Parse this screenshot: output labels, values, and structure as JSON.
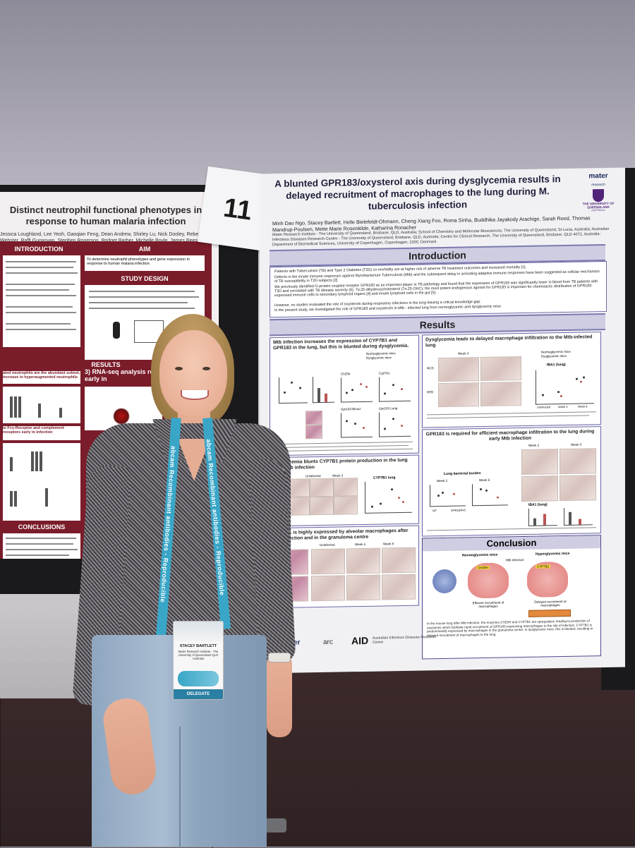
{
  "poster_number": "11",
  "left_poster": {
    "title": "Distinct neutrophil functional phenotypes in response to human malaria infection",
    "authors": "Jessica Loughland, Lee Yeoh, Gaoqian Feng, Dean Andrew, Shirley Lu, Nick Dooley, Rebecca Webster, Raffi Gugasyan, Stephen Rogerson, Bridget Barber, Michelle Boyle, James Beeson",
    "sections": {
      "introduction": "INTRODUCTION",
      "aim": "AIM",
      "aim_text": "To determine neutrophil phenotypes and gene expression in response to human malaria infection.",
      "study_design": "STUDY DESIGN",
      "results": "RESULTS",
      "rnaseq": "3) RNA-seq analysis reveal neutrophils early in",
      "fcy": "in Fcγ-Receptor and complement receptors early in infection",
      "abundant": "ated neutrophils are the abundant subset, increase in hyperaugmented neutrophils",
      "conclusions": "CONCLUSIONS"
    }
  },
  "main_poster": {
    "title": "A blunted GPR183/oxysterol axis during dysglycemia results in delayed recruitment of macrophages to the lung during M. tuberculosis infection",
    "authors": "Minh Dao Ngo, Stacey Bartlett, Helle Bielefeldt-Ohmann, Cheng Xiang Foo, Roma Sinha, Buddhika Jayakody Arachige, Sarah Reed, Thomas Mandrup-Poulsen, Mette Marie Rosenkilde, Katharina Ronacher",
    "affiliations": "Mater Research Institute - The University of Queensland, Brisbane, QLD, Australia; School of Chemistry and Molecular Biosciences, The University of Queensland, St Lucia, Australia; Australian Infectious Diseases Research Centre - The University of Queensland, Brisbane, QLD, Australia; Centre for Clinical Research, The University of Queensland, Brisbane, QLD 4072, Australia; Department of Biomedical Sciences, University of Copenhagen, Copenhagen, 2200, Denmark",
    "logos": {
      "mater": "mater",
      "mater_sub": "research",
      "uq": "THE UNIVERSITY OF QUEENSLAND",
      "uq_sub": "AUSTRALIA"
    },
    "introduction_heading": "Introduction",
    "intro_points": [
      "Patients with Tuberculosis (TB) and Type 2 Diabetes (T2D) co-morbidity are at higher risk of adverse TB treatment outcomes and increased mortality [1].",
      "Defects in the innate immune responses against Mycobacterium Tuberculosis (Mtb) and the subsequent delay in activating adaptive immune responses have been suggested as cellular mechanism of TB susceptibility in T2D subjects [2]",
      "We previously identified G-protein coupled receptor GPR183 as an important player in TB pathology and found that the expression of GPR183 was significantly lower in blood from TB patients with T2D and correlated with TB disease severity (6). 7α,25-dihydroxycholesterol (7α,25-OHC), the most potent endogenous agonist for GPR183 is important for chemotactic distribution of GPR183-expressed immune cells to secondary lymphoid organs [4] and innate lymphoid cells in the gut [5].",
      "However, no studies evaluated the role of oxysterols during respiratory infections in the lung leaving a critical knowledge gap.",
      "In the present study, we investigated the role of GPR183 and oxysterols in Mtb - infected lung from normoglycemic and dysglycemic mice"
    ],
    "results_heading": "Results",
    "panels": {
      "p1_title": "Mtb infection increases the expression of CYP7B1 and GPR183 in the lung, but this is blunted during dysglycemia.",
      "p2_title": "Dysglycemia leads to delayed macrophage infiltration to the Mtb-infected lung",
      "p3_title": "GPR183 is required for efficient macrophage infiltration to the lung during early Mtb infection",
      "p4_title": "Dysglycemia blunts CYP7B1 protein production in the lung after Mtb infection",
      "p5_title": "CYP7B1 is highly expressed by alveolar macrophages after Mtb infection and in the granuloma centre",
      "legend_ncd": "Normoglycemic mice",
      "legend_hfd": "Dysglycemic mice",
      "label_ncd": "NCD",
      "label_hfd": "HFD",
      "iba1": "IBA1 (lung)",
      "week2": "Week 2",
      "week3": "Week 3",
      "week4": "Week 4",
      "week5": "Week 5",
      "week8": "Week 8",
      "uninfected": "Uninfected",
      "bacterial_burden": "Lung bacterial burden",
      "cyp7b1_lung": "CYP7B1 lung",
      "gpr183_blood": "Gpr183 Blood",
      "gpr183_lung": "Gpr183 Lung",
      "ch25h": "Ch25h",
      "cyp7b1": "Cyp7b1",
      "wt": "WT",
      "ko": "GPR183KO"
    },
    "conclusion_heading": "Conclusion",
    "conclusion_labels": {
      "normo": "Normoglycemic mice",
      "hyper": "Hyperglycemic mice",
      "mtb": "Mtb infection",
      "ch25h": "CH25H",
      "cyp7b1": "CYP7B1",
      "efficient": "Efficient recruitment of macrophages",
      "delayed": "Delayed recruitment of macrophages"
    },
    "conclusion_text": "In the mouse lung after Mtb infection, the enzymes CH25H and CYP7B1 are upregulated, leading to production of oxysterols which facilitate rapid recruitment of GPR183-expressing macrophages to the site of infection. CYP7B1 is predominantly expressed by macrophages in the granuloma centre. In dysglycemic mice, this is blunted, resulting in delayed recruitment of macrophages to the lung.",
    "footer_logos": {
      "mater": "mater",
      "arc": "arc",
      "aid": "AID",
      "aid_sub": "Australian Infectious Diseases Research Centre"
    }
  },
  "lanyard_text": "abcam Recombinant antibodies - Reproducible",
  "badge": {
    "name": "STACEY BARTLETT",
    "org": "Mater Research Institute - The University of Queensland QLD Australia",
    "role": "DELEGATE"
  }
}
